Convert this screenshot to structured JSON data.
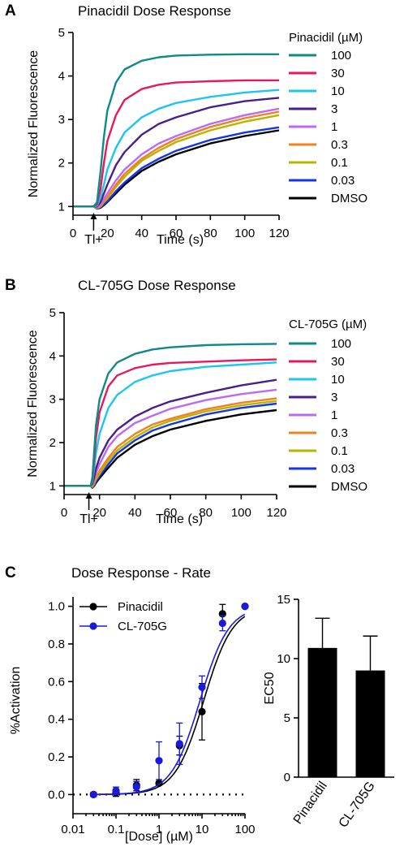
{
  "chart_data": [
    {
      "panel": "A",
      "type": "line",
      "title": "Pinacidil  Dose Response",
      "xlabel": "Time (s)",
      "ylabel": "Normalized Fluorescence",
      "xlim": [
        0,
        120
      ],
      "ylim": [
        0.8,
        5
      ],
      "xticks": [
        "0",
        "20",
        "40",
        "60",
        "80",
        "100",
        "120"
      ],
      "yticks": [
        "1",
        "2",
        "3",
        "4",
        "5"
      ],
      "annotation": "Tl+",
      "annotation_x": 12,
      "legend_title": "Pinacidil (µM)",
      "legend_position": "right",
      "series": [
        {
          "name": "100",
          "color": "#0f8a86",
          "x": [
            0,
            12,
            14,
            16,
            18,
            20,
            25,
            30,
            40,
            50,
            60,
            80,
            100,
            120
          ],
          "y": [
            1,
            1,
            1.1,
            1.8,
            2.6,
            3.2,
            3.85,
            4.15,
            4.35,
            4.43,
            4.47,
            4.49,
            4.5,
            4.5
          ]
        },
        {
          "name": "30",
          "color": "#e8185f",
          "x": [
            0,
            12,
            14,
            16,
            18,
            20,
            25,
            30,
            40,
            50,
            60,
            80,
            100,
            120
          ],
          "y": [
            1,
            1,
            1.05,
            1.4,
            2.0,
            2.5,
            3.1,
            3.45,
            3.7,
            3.8,
            3.85,
            3.88,
            3.9,
            3.9
          ]
        },
        {
          "name": "10",
          "color": "#1cc6ee",
          "x": [
            0,
            12,
            14,
            16,
            18,
            20,
            25,
            30,
            40,
            50,
            60,
            80,
            100,
            120
          ],
          "y": [
            1,
            1,
            1.02,
            1.2,
            1.5,
            1.85,
            2.35,
            2.7,
            3.05,
            3.25,
            3.38,
            3.52,
            3.62,
            3.68
          ]
        },
        {
          "name": "3",
          "color": "#4b1f8a",
          "x": [
            0,
            12,
            14,
            16,
            18,
            20,
            25,
            30,
            40,
            50,
            60,
            80,
            100,
            120
          ],
          "y": [
            1,
            1,
            1.0,
            1.1,
            1.3,
            1.5,
            1.95,
            2.25,
            2.65,
            2.9,
            3.05,
            3.28,
            3.42,
            3.5
          ]
        },
        {
          "name": "1",
          "color": "#bd6af0",
          "x": [
            0,
            12,
            14,
            16,
            18,
            20,
            25,
            30,
            40,
            50,
            60,
            80,
            100,
            120
          ],
          "y": [
            1,
            1,
            0.98,
            1.05,
            1.18,
            1.3,
            1.6,
            1.85,
            2.2,
            2.45,
            2.62,
            2.9,
            3.1,
            3.25
          ]
        },
        {
          "name": "0.3",
          "color": "#f08020",
          "x": [
            0,
            12,
            14,
            16,
            18,
            20,
            25,
            30,
            40,
            50,
            60,
            80,
            100,
            120
          ],
          "y": [
            1,
            1,
            0.97,
            1.02,
            1.12,
            1.22,
            1.5,
            1.75,
            2.1,
            2.35,
            2.55,
            2.83,
            3.03,
            3.18
          ]
        },
        {
          "name": "0.1",
          "color": "#b8b400",
          "x": [
            0,
            12,
            14,
            16,
            18,
            20,
            25,
            30,
            40,
            50,
            60,
            80,
            100,
            120
          ],
          "y": [
            1,
            1,
            0.96,
            1.0,
            1.1,
            1.18,
            1.45,
            1.68,
            2.05,
            2.28,
            2.48,
            2.75,
            2.95,
            3.1
          ]
        },
        {
          "name": "0.03",
          "color": "#1535e8",
          "x": [
            0,
            12,
            14,
            16,
            18,
            20,
            25,
            30,
            40,
            50,
            60,
            80,
            100,
            120
          ],
          "y": [
            1,
            1,
            0.95,
            0.98,
            1.05,
            1.12,
            1.35,
            1.55,
            1.88,
            2.1,
            2.28,
            2.53,
            2.7,
            2.82
          ]
        },
        {
          "name": "DMSO",
          "color": "#000000",
          "x": [
            0,
            12,
            14,
            16,
            18,
            20,
            25,
            30,
            40,
            50,
            60,
            80,
            100,
            120
          ],
          "y": [
            1,
            1,
            0.95,
            0.97,
            1.03,
            1.1,
            1.3,
            1.5,
            1.82,
            2.03,
            2.2,
            2.45,
            2.62,
            2.75
          ]
        }
      ]
    },
    {
      "panel": "B",
      "type": "line",
      "title": "CL-705G  Dose Response",
      "xlabel": "Time (s)",
      "ylabel": "Normalized Fluorescence",
      "xlim": [
        0,
        120
      ],
      "ylim": [
        0.8,
        5
      ],
      "xticks": [
        "0",
        "20",
        "40",
        "60",
        "80",
        "100",
        "120"
      ],
      "yticks": [
        "1",
        "2",
        "3",
        "4",
        "5"
      ],
      "annotation": "Tl+",
      "annotation_x": 14,
      "legend_title": "CL-705G (µM)",
      "legend_position": "right",
      "series": [
        {
          "name": "100",
          "color": "#0f8a86",
          "x": [
            0,
            15,
            16,
            17,
            18,
            20,
            25,
            30,
            40,
            50,
            60,
            80,
            100,
            120
          ],
          "y": [
            1,
            1,
            1.2,
            1.8,
            2.4,
            3.0,
            3.6,
            3.85,
            4.05,
            4.15,
            4.2,
            4.25,
            4.27,
            4.28
          ]
        },
        {
          "name": "30",
          "color": "#e8185f",
          "x": [
            0,
            15,
            16,
            17,
            18,
            20,
            25,
            30,
            40,
            50,
            60,
            80,
            100,
            120
          ],
          "y": [
            1,
            1,
            1.15,
            1.6,
            2.1,
            2.7,
            3.3,
            3.55,
            3.72,
            3.8,
            3.84,
            3.87,
            3.9,
            3.92
          ]
        },
        {
          "name": "10",
          "color": "#1cc6ee",
          "x": [
            0,
            15,
            16,
            17,
            18,
            20,
            25,
            30,
            40,
            50,
            60,
            80,
            100,
            120
          ],
          "y": [
            1,
            1,
            1.1,
            1.4,
            1.75,
            2.2,
            2.8,
            3.1,
            3.4,
            3.55,
            3.65,
            3.75,
            3.8,
            3.85
          ]
        },
        {
          "name": "3",
          "color": "#4b1f8a",
          "x": [
            0,
            15,
            16,
            17,
            18,
            20,
            25,
            30,
            40,
            50,
            60,
            80,
            100,
            120
          ],
          "y": [
            1,
            1,
            1.05,
            1.2,
            1.4,
            1.65,
            2.05,
            2.3,
            2.6,
            2.8,
            2.95,
            3.15,
            3.32,
            3.45
          ]
        },
        {
          "name": "1",
          "color": "#bd6af0",
          "x": [
            0,
            15,
            16,
            17,
            18,
            20,
            25,
            30,
            40,
            50,
            60,
            80,
            100,
            120
          ],
          "y": [
            1,
            1,
            1.03,
            1.15,
            1.3,
            1.5,
            1.9,
            2.15,
            2.45,
            2.62,
            2.78,
            2.98,
            3.12,
            3.22
          ]
        },
        {
          "name": "0.3",
          "color": "#f08020",
          "x": [
            0,
            15,
            16,
            17,
            18,
            20,
            25,
            30,
            40,
            50,
            60,
            80,
            100,
            120
          ],
          "y": [
            1,
            1,
            1.0,
            1.08,
            1.2,
            1.35,
            1.65,
            1.9,
            2.2,
            2.42,
            2.55,
            2.77,
            2.92,
            3.02
          ]
        },
        {
          "name": "0.1",
          "color": "#b8b400",
          "x": [
            0,
            15,
            16,
            17,
            18,
            20,
            25,
            30,
            40,
            50,
            60,
            80,
            100,
            120
          ],
          "y": [
            1,
            1,
            0.98,
            1.05,
            1.15,
            1.28,
            1.58,
            1.82,
            2.12,
            2.35,
            2.5,
            2.72,
            2.86,
            2.96
          ]
        },
        {
          "name": "0.03",
          "color": "#1535e8",
          "x": [
            0,
            15,
            16,
            17,
            18,
            20,
            25,
            30,
            40,
            50,
            60,
            80,
            100,
            120
          ],
          "y": [
            1,
            1,
            0.97,
            1.02,
            1.1,
            1.22,
            1.5,
            1.75,
            2.05,
            2.28,
            2.42,
            2.65,
            2.8,
            2.9
          ]
        },
        {
          "name": "DMSO",
          "color": "#000000",
          "x": [
            0,
            15,
            16,
            17,
            18,
            20,
            25,
            30,
            40,
            50,
            60,
            80,
            100,
            120
          ],
          "y": [
            1,
            1,
            0.96,
            1.0,
            1.07,
            1.18,
            1.42,
            1.65,
            1.95,
            2.15,
            2.3,
            2.5,
            2.65,
            2.75
          ]
        }
      ]
    },
    {
      "panel": "C",
      "type": "scatter",
      "title": "Dose Response - Rate",
      "xlabel": "[Dose] (µM)",
      "ylabel": "%Activation",
      "xscale": "log",
      "xlim": [
        0.01,
        100
      ],
      "ylim": [
        -0.05,
        1.05
      ],
      "xticks": [
        "0.01",
        "0.1",
        "1",
        "10",
        "100"
      ],
      "yticks": [
        "0.0",
        "0.2",
        "0.4",
        "0.6",
        "0.8",
        "1.0"
      ],
      "baseline": 0,
      "legend_position": "top-left",
      "series": [
        {
          "name": "Pinacidil",
          "color": "#000000",
          "x": [
            0.03,
            0.1,
            0.3,
            1,
            3,
            10,
            30,
            100
          ],
          "y": [
            0.0,
            0.01,
            0.05,
            0.06,
            0.26,
            0.44,
            0.96,
            1.0
          ],
          "err": [
            0.01,
            0.02,
            0.03,
            0.01,
            0.05,
            0.15,
            0.05,
            0.0
          ],
          "fit": {
            "ec50": 11,
            "hill": 1.3
          }
        },
        {
          "name": "CL-705G",
          "color": "#1a1adc",
          "x": [
            0.03,
            0.1,
            0.3,
            1,
            3,
            10,
            30,
            100
          ],
          "y": [
            0.0,
            0.02,
            0.04,
            0.18,
            0.27,
            0.57,
            0.91,
            1.0
          ],
          "err": [
            0.01,
            0.02,
            0.03,
            0.1,
            0.11,
            0.06,
            0.04,
            0.0
          ],
          "fit": {
            "ec50": 9,
            "hill": 1.3
          }
        }
      ]
    },
    {
      "panel": "C-right",
      "type": "bar",
      "categories": [
        "Pinacidil",
        "CL-705G"
      ],
      "values": [
        10.9,
        9.0
      ],
      "errors": [
        2.5,
        2.9
      ],
      "ylabel": "EC50",
      "ylim": [
        0,
        15
      ],
      "yticks": [
        "0",
        "5",
        "10",
        "15"
      ],
      "color": "#000000"
    }
  ]
}
